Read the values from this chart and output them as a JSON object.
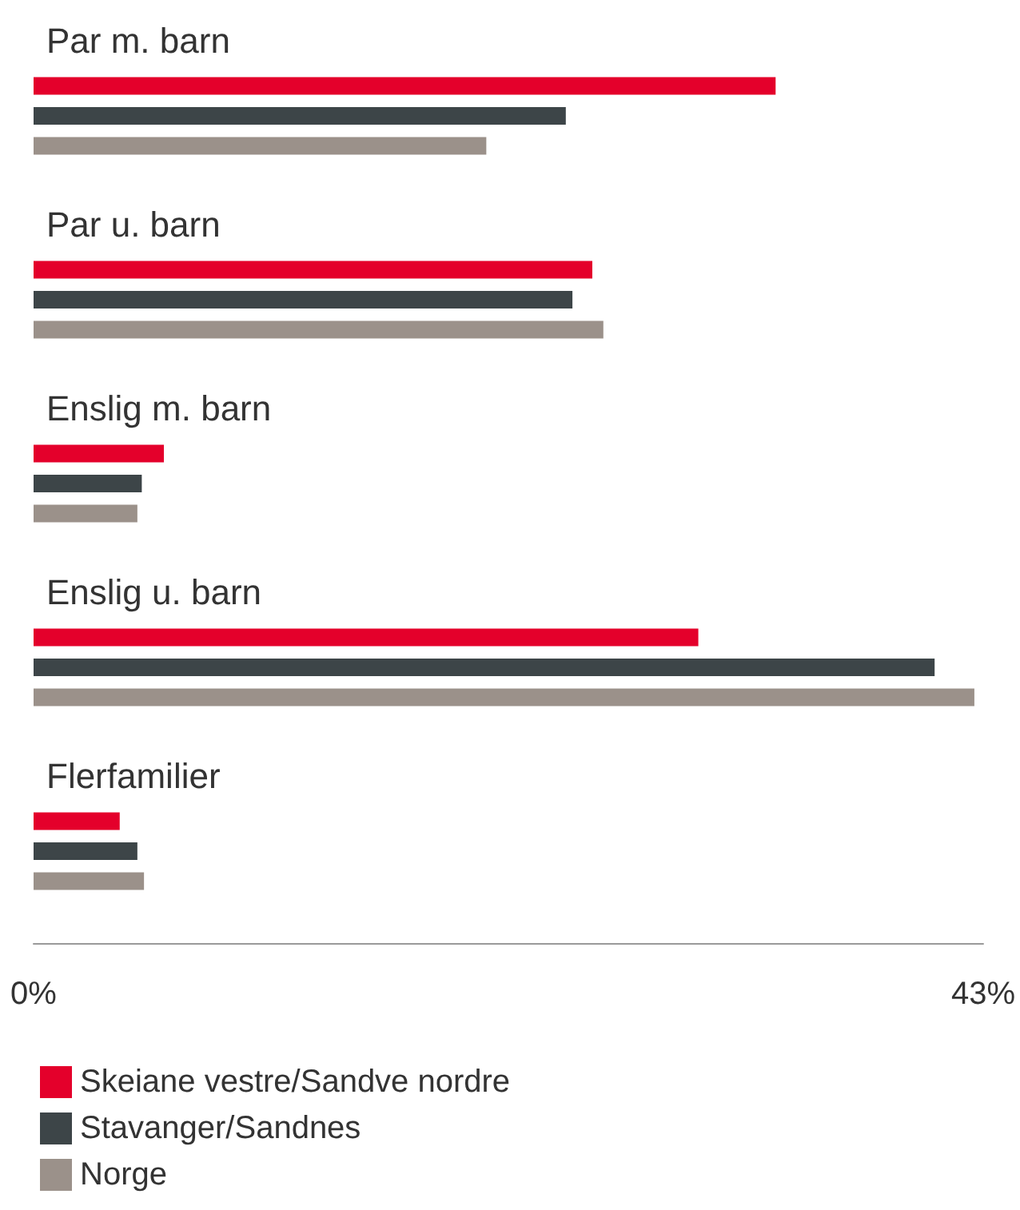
{
  "chart_data": {
    "type": "bar",
    "orientation": "horizontal",
    "categories": [
      "Par m. barn",
      "Par u. barn",
      "Enslig m. barn",
      "Enslig u. barn",
      "Flerfamilier"
    ],
    "series": [
      {
        "name": "Skeiane vestre/Sandve nordre",
        "color": "#e4002b",
        "values": [
          33.6,
          25.3,
          5.9,
          30.1,
          3.9
        ]
      },
      {
        "name": "Stavanger/Sandnes",
        "color": "#3d4548",
        "values": [
          24.1,
          24.4,
          4.9,
          40.8,
          4.7
        ]
      },
      {
        "name": "Norge",
        "color": "#9b918a",
        "values": [
          20.5,
          25.8,
          4.7,
          42.6,
          5.0
        ]
      }
    ],
    "xlim": [
      0,
      43
    ],
    "xticks": [
      {
        "value": 0,
        "label": "0%"
      },
      {
        "value": 43,
        "label": "43%"
      }
    ],
    "grid": false,
    "legend": "bottom left"
  }
}
